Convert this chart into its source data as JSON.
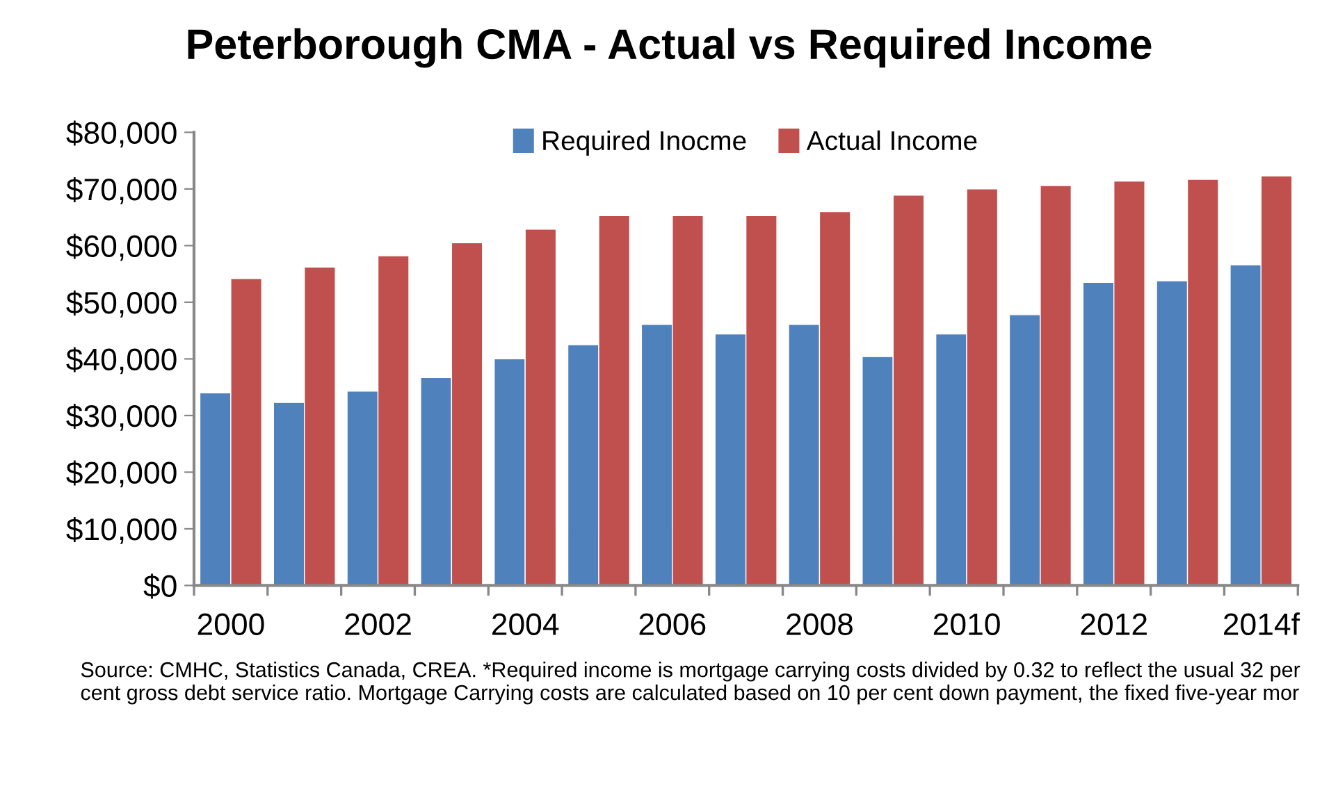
{
  "chart_data": {
    "type": "bar",
    "title": "Peterborough CMA - Actual vs Required Income",
    "categories": [
      "2000",
      null,
      "2002",
      null,
      "2004",
      null,
      "2006",
      null,
      "2008",
      null,
      "2010",
      null,
      "2012",
      null,
      "2014f"
    ],
    "series": [
      {
        "name": "Required Inocme",
        "color": "#4f81bd",
        "values": [
          34000,
          32300,
          34300,
          36700,
          40000,
          42500,
          46100,
          44400,
          46100,
          40400,
          44400,
          47800,
          53500,
          53800,
          56600
        ]
      },
      {
        "name": "Actual Income",
        "color": "#c0504d",
        "values": [
          54200,
          56200,
          58200,
          60500,
          62900,
          65300,
          65300,
          65300,
          66000,
          68900,
          70000,
          70600,
          71400,
          71700,
          72300
        ]
      }
    ],
    "ylim": [
      0,
      80000
    ],
    "yticks": [
      {
        "value": 0,
        "label": "$0"
      },
      {
        "value": 10000,
        "label": "$10,000"
      },
      {
        "value": 20000,
        "label": "$20,000"
      },
      {
        "value": 30000,
        "label": "$30,000"
      },
      {
        "value": 40000,
        "label": "$40,000"
      },
      {
        "value": 50000,
        "label": "$50,000"
      },
      {
        "value": 60000,
        "label": "$60,000"
      },
      {
        "value": 70000,
        "label": "$70,000"
      },
      {
        "value": 80000,
        "label": "$80,000"
      }
    ],
    "grid": false,
    "legend": "top",
    "annotations": [
      "Source: CMHC, Statistics Canada, CREA. *Required income is mortgage carrying costs divided by 0.32 to reflect the usual 32 per cent gross debt service ratio. Mortgage Carrying costs are calculated based on 10 per cent down payment, the fixed five-year mor"
    ]
  }
}
